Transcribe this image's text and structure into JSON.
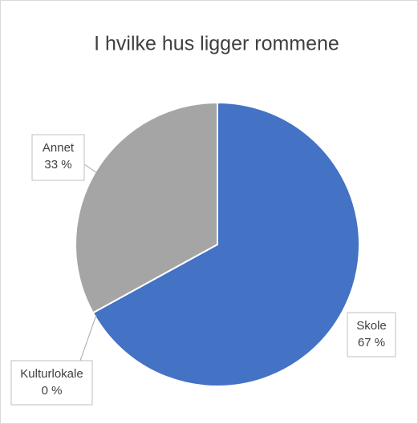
{
  "chart_data": {
    "type": "pie",
    "title": "I hvilke hus ligger rommene",
    "categories": [
      "Skole",
      "Kulturlokale",
      "Annet"
    ],
    "values": [
      67,
      0,
      33
    ],
    "value_labels": [
      "67 %",
      "0 %",
      "33 %"
    ],
    "colors": [
      "#4472c4",
      "#ed7d31",
      "#a5a5a5"
    ]
  }
}
